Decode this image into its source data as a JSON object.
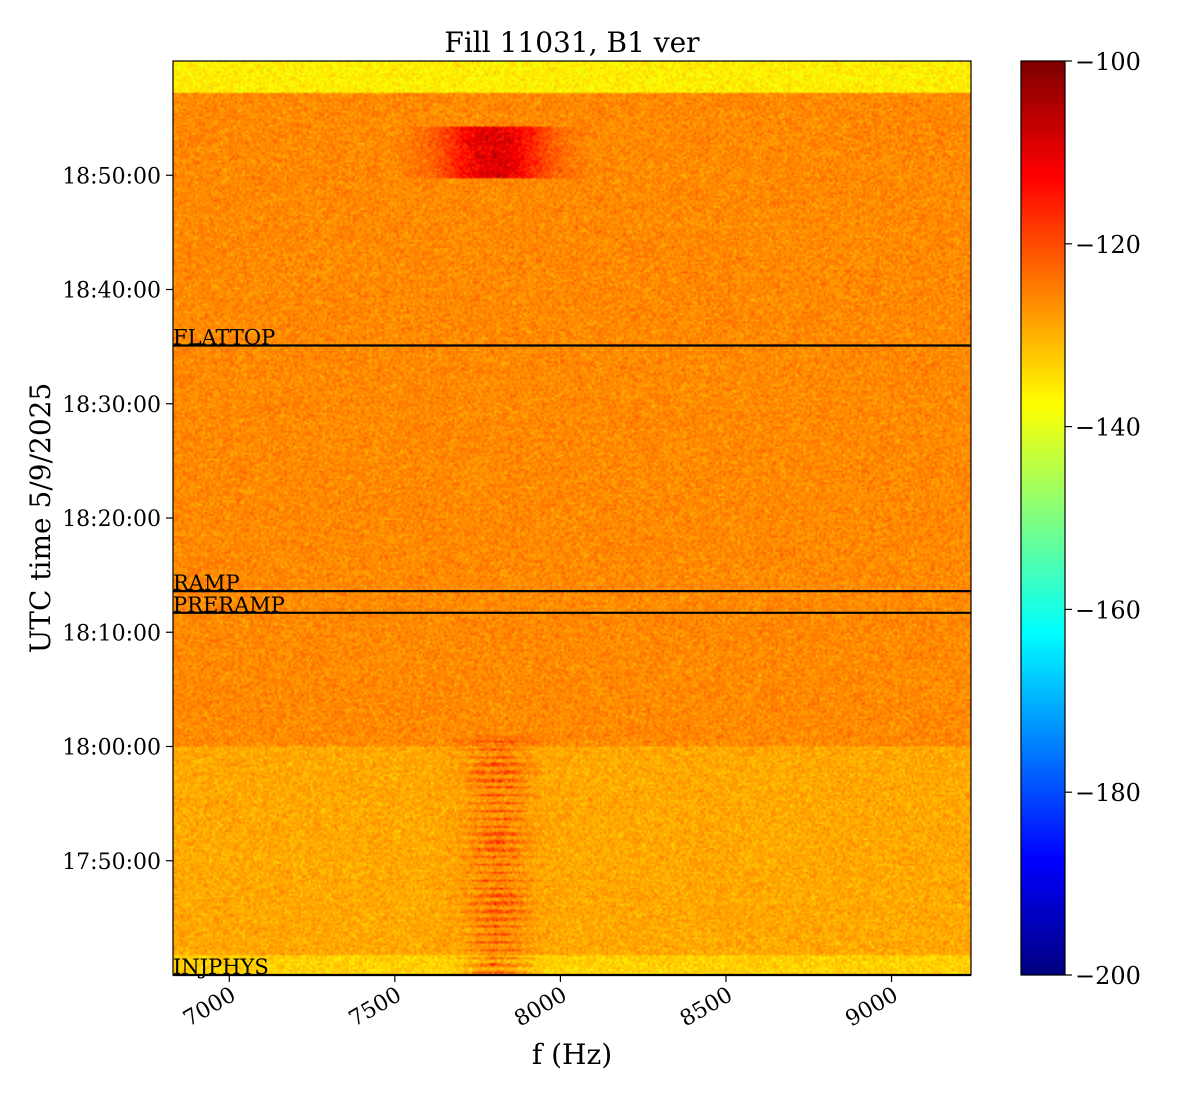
{
  "colors": {
    "background": "#ffffff",
    "axis": "#000000",
    "colormap": "jet"
  },
  "chart_data": {
    "type": "heatmap",
    "title": "Fill 11031, B1 ver",
    "xlabel": "f (Hz)",
    "ylabel": "UTC time 5/9/2025",
    "xlim": [
      6830,
      9240
    ],
    "x_ticks": [
      {
        "value": 7000,
        "label": "7000"
      },
      {
        "value": 7500,
        "label": "7500"
      },
      {
        "value": 8000,
        "label": "8000"
      },
      {
        "value": 8500,
        "label": "8500"
      },
      {
        "value": 9000,
        "label": "9000"
      }
    ],
    "ylim_minutes_from_1740": [
      0,
      80
    ],
    "y_ticks": [
      {
        "value": 10,
        "label": "17:50:00"
      },
      {
        "value": 20,
        "label": "18:00:00"
      },
      {
        "value": 30,
        "label": "18:10:00"
      },
      {
        "value": 40,
        "label": "18:20:00"
      },
      {
        "value": 50,
        "label": "18:30:00"
      },
      {
        "value": 60,
        "label": "18:40:00"
      },
      {
        "value": 70,
        "label": "18:50:00"
      }
    ],
    "colorbar": {
      "min": -200,
      "max": -100,
      "ticks": [
        {
          "value": -100,
          "label": "−100"
        },
        {
          "value": -120,
          "label": "−120"
        },
        {
          "value": -140,
          "label": "−140"
        },
        {
          "value": -160,
          "label": "−160"
        },
        {
          "value": -180,
          "label": "−180"
        },
        {
          "value": -200,
          "label": "−200"
        }
      ]
    },
    "events": [
      {
        "label": "FLATTOP",
        "t": 55.1
      },
      {
        "label": "RAMP",
        "t": 33.6
      },
      {
        "label": "PRERAMP",
        "t": 31.7
      },
      {
        "label": "INJPHYS",
        "t": 0.0
      }
    ],
    "power_regions": [
      {
        "t_from": 0.0,
        "t_to": 1.8,
        "level": -133
      },
      {
        "t_from": 1.8,
        "t_to": 20.0,
        "level": -129
      },
      {
        "t_from": 20.0,
        "t_to": 77.2,
        "level": -126
      },
      {
        "t_from": 77.2,
        "t_to": 80.0,
        "level": -136
      }
    ],
    "hot_spots": [
      {
        "f": 7800,
        "t": 72.0,
        "f_width": 360,
        "t_width": 4.5,
        "level": -108
      },
      {
        "f": 7810,
        "t": 10.0,
        "f_width": 200,
        "t_width": 22,
        "level": -115
      }
    ]
  }
}
